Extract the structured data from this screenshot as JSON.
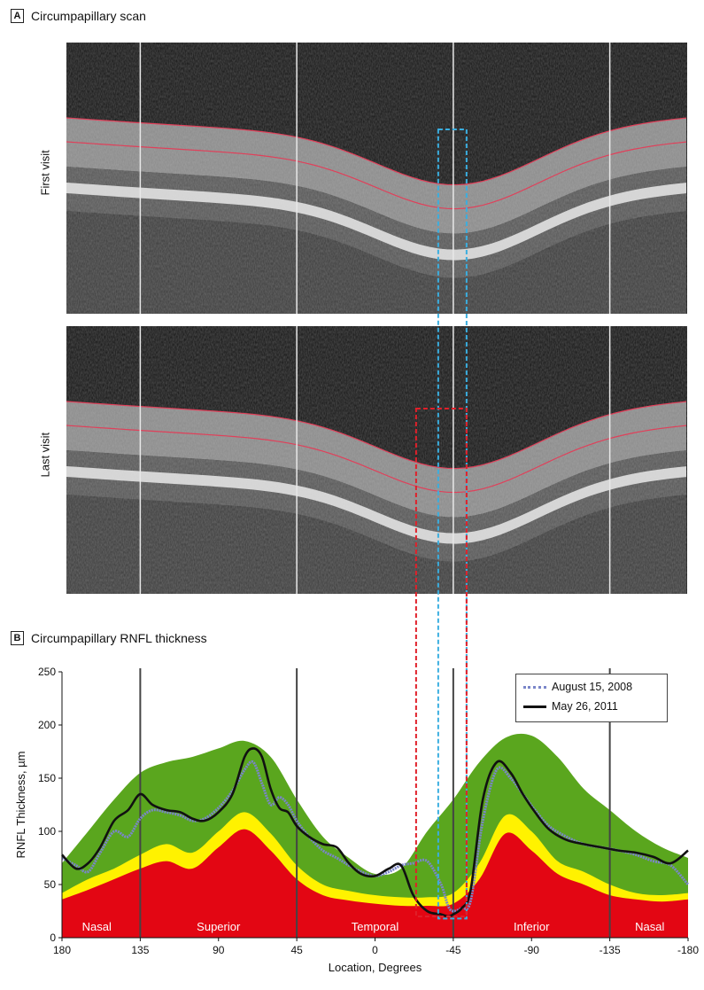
{
  "panel_a": {
    "letter": "A",
    "title": "Circumpapillary scan"
  },
  "scans": [
    {
      "label": "First visit"
    },
    {
      "label": "Last visit"
    }
  ],
  "panel_b": {
    "letter": "B",
    "title": "Circumpapillary RNFL thickness"
  },
  "colors": {
    "red": "#e30613",
    "yellow": "#fff200",
    "green": "#5aa61e",
    "line_2008": "#7a86c9",
    "line_2011": "#111111",
    "box_blue": "#3aaee0",
    "box_red": "#e0202a"
  },
  "chart_data": {
    "type": "line",
    "xlabel": "Location, Degrees",
    "ylabel": "RNFL Thickness, µm",
    "xlim": [
      180,
      -180
    ],
    "ylim": [
      0,
      250
    ],
    "x_ticks": [
      180,
      135,
      90,
      45,
      0,
      -45,
      -90,
      -135,
      -180
    ],
    "x_tick_labels": [
      "180",
      "135",
      "90",
      "45",
      "0",
      "-45",
      "-90",
      "-135",
      "-180"
    ],
    "y_ticks": [
      0,
      50,
      100,
      150,
      200,
      250
    ],
    "vertical_lines": [
      135,
      45,
      -45,
      -135
    ],
    "regions": [
      {
        "label": "Nasal",
        "x": 160
      },
      {
        "label": "Superior",
        "x": 90
      },
      {
        "label": "Temporal",
        "x": 0
      },
      {
        "label": "Inferior",
        "x": -90
      },
      {
        "label": "Nasal",
        "x": -158
      }
    ],
    "normative_bands": {
      "x": [
        180,
        165,
        150,
        135,
        120,
        105,
        90,
        75,
        60,
        45,
        30,
        15,
        0,
        -15,
        -30,
        -45,
        -60,
        -75,
        -90,
        -105,
        -120,
        -135,
        -150,
        -165,
        -180
      ],
      "red_upper": [
        36,
        45,
        55,
        65,
        72,
        65,
        85,
        102,
        82,
        55,
        40,
        35,
        32,
        30,
        30,
        32,
        55,
        98,
        82,
        60,
        50,
        40,
        36,
        34,
        36
      ],
      "yellow_upper": [
        42,
        55,
        65,
        78,
        88,
        80,
        100,
        118,
        98,
        68,
        50,
        44,
        40,
        38,
        38,
        42,
        70,
        115,
        100,
        72,
        62,
        50,
        42,
        40,
        42
      ],
      "green_upper": [
        70,
        100,
        130,
        155,
        165,
        170,
        178,
        185,
        170,
        130,
        95,
        75,
        60,
        65,
        100,
        130,
        165,
        188,
        190,
        170,
        140,
        120,
        100,
        85,
        75
      ]
    },
    "series": [
      {
        "name": "August 15, 2008",
        "x": [
          180,
          172,
          165,
          158,
          150,
          142,
          135,
          128,
          120,
          112,
          105,
          98,
          90,
          82,
          75,
          70,
          65,
          60,
          55,
          50,
          45,
          38,
          30,
          22,
          15,
          8,
          0,
          -8,
          -15,
          -22,
          -30,
          -38,
          -42,
          -45,
          -50,
          -55,
          -62,
          -70,
          -78,
          -85,
          -92,
          -100,
          -110,
          -120,
          -130,
          -140,
          -150,
          -160,
          -170,
          -180
        ],
        "values": [
          75,
          68,
          62,
          80,
          100,
          95,
          112,
          120,
          118,
          115,
          110,
          112,
          122,
          138,
          158,
          165,
          145,
          125,
          132,
          125,
          110,
          95,
          82,
          75,
          68,
          62,
          58,
          62,
          68,
          70,
          72,
          50,
          30,
          25,
          28,
          35,
          110,
          158,
          150,
          135,
          120,
          105,
          95,
          88,
          85,
          82,
          78,
          72,
          68,
          50
        ]
      },
      {
        "name": "May 26, 2011",
        "x": [
          180,
          172,
          165,
          158,
          150,
          142,
          135,
          128,
          120,
          112,
          105,
          98,
          90,
          82,
          75,
          70,
          65,
          60,
          55,
          50,
          45,
          38,
          30,
          22,
          15,
          8,
          0,
          -8,
          -15,
          -22,
          -30,
          -38,
          -42,
          -45,
          -50,
          -55,
          -62,
          -70,
          -78,
          -85,
          -92,
          -100,
          -110,
          -120,
          -130,
          -140,
          -150,
          -160,
          -170,
          -180
        ],
        "values": [
          78,
          65,
          70,
          85,
          110,
          120,
          135,
          125,
          120,
          118,
          112,
          110,
          118,
          135,
          170,
          178,
          170,
          140,
          122,
          118,
          105,
          95,
          88,
          85,
          70,
          60,
          58,
          65,
          68,
          40,
          25,
          22,
          20,
          22,
          28,
          45,
          130,
          165,
          155,
          135,
          118,
          102,
          92,
          88,
          85,
          82,
          80,
          76,
          70,
          82
        ]
      }
    ]
  }
}
